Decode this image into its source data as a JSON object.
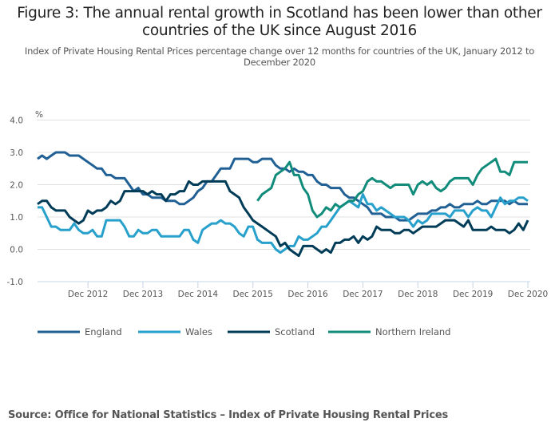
{
  "title": "Figure 3: The annual rental growth in Scotland has been lower than other countries of the UK since August 2016",
  "subtitle": "Index of Private Housing Rental Prices percentage change over 12 months for countries of the UK, January 2012 to December 2020",
  "source": "Source: Office for National Statistics – Index of Private Housing Rental Prices",
  "chart_data": {
    "type": "line",
    "title": "Figure 3: The annual rental growth in Scotland has been lower than other countries of the UK since August 2016",
    "subtitle": "Index of Private Housing Rental Prices percentage change over 12 months for countries of the UK, January 2012 to December 2020",
    "xlabel": "",
    "ylabel": "%",
    "ylim": [
      -1.0,
      4.0
    ],
    "yticks": [
      "4.0",
      "3.0",
      "2.0",
      "1.0",
      "0.0",
      "-1.0"
    ],
    "ytick_values": [
      4.0,
      3.0,
      2.0,
      1.0,
      0.0,
      -1.0
    ],
    "x_start": "Jan 2012",
    "x_end": "Dec 2020",
    "x_months": 108,
    "xticks": [
      "Dec 2012",
      "Dec 2013",
      "Dec 2014",
      "Dec 2015",
      "Dec 2016",
      "Dec 2017",
      "Dec 2018",
      "Dec 2019",
      "Dec 2020"
    ],
    "xtick_month_index": [
      11,
      23,
      35,
      47,
      59,
      71,
      83,
      95,
      107
    ],
    "grid": true,
    "legend_position": "bottom",
    "series": [
      {
        "name": "England",
        "color": "#206095",
        "start_index": 0,
        "values": [
          2.8,
          2.9,
          2.8,
          2.9,
          3.0,
          3.0,
          3.0,
          2.9,
          2.9,
          2.9,
          2.8,
          2.7,
          2.6,
          2.5,
          2.5,
          2.3,
          2.3,
          2.2,
          2.2,
          2.2,
          2.0,
          1.8,
          1.9,
          1.7,
          1.7,
          1.6,
          1.6,
          1.6,
          1.5,
          1.5,
          1.5,
          1.4,
          1.4,
          1.5,
          1.6,
          1.8,
          1.9,
          2.1,
          2.1,
          2.3,
          2.5,
          2.5,
          2.5,
          2.8,
          2.8,
          2.8,
          2.8,
          2.7,
          2.7,
          2.8,
          2.8,
          2.8,
          2.6,
          2.5,
          2.5,
          2.4,
          2.5,
          2.4,
          2.4,
          2.3,
          2.3,
          2.1,
          2.0,
          2.0,
          1.9,
          1.9,
          1.9,
          1.7,
          1.6,
          1.6,
          1.5,
          1.4,
          1.3,
          1.1,
          1.1,
          1.1,
          1.0,
          1.0,
          1.0,
          0.9,
          0.9,
          0.9,
          1.0,
          1.1,
          1.1,
          1.1,
          1.2,
          1.2,
          1.3,
          1.3,
          1.4,
          1.3,
          1.3,
          1.4,
          1.4,
          1.4,
          1.5,
          1.4,
          1.4,
          1.5,
          1.5,
          1.5,
          1.5,
          1.4,
          1.5,
          1.4,
          1.4,
          1.4
        ]
      },
      {
        "name": "Wales",
        "color": "#27a0cc",
        "start_index": 0,
        "values": [
          1.3,
          1.3,
          1.0,
          0.7,
          0.7,
          0.6,
          0.6,
          0.6,
          0.8,
          0.6,
          0.5,
          0.5,
          0.6,
          0.4,
          0.4,
          0.9,
          0.9,
          0.9,
          0.9,
          0.7,
          0.4,
          0.4,
          0.6,
          0.5,
          0.5,
          0.6,
          0.6,
          0.4,
          0.4,
          0.4,
          0.4,
          0.4,
          0.6,
          0.6,
          0.3,
          0.2,
          0.6,
          0.7,
          0.8,
          0.8,
          0.9,
          0.8,
          0.8,
          0.7,
          0.5,
          0.4,
          0.7,
          0.7,
          0.3,
          0.2,
          0.2,
          0.2,
          0.0,
          -0.1,
          0.0,
          0.1,
          0.1,
          0.4,
          0.3,
          0.3,
          0.4,
          0.5,
          0.7,
          0.7,
          0.9,
          1.1,
          1.3,
          1.4,
          1.5,
          1.4,
          1.3,
          1.7,
          1.4,
          1.4,
          1.2,
          1.3,
          1.2,
          1.1,
          1.0,
          1.0,
          1.0,
          0.9,
          0.7,
          0.9,
          0.8,
          0.9,
          1.1,
          1.1,
          1.1,
          1.1,
          1.0,
          1.2,
          1.2,
          1.2,
          1.0,
          1.2,
          1.3,
          1.2,
          1.2,
          1.0,
          1.3,
          1.6,
          1.4,
          1.5,
          1.5,
          1.6,
          1.6,
          1.5
        ]
      },
      {
        "name": "Scotland",
        "color": "#003c57",
        "start_index": 0,
        "values": [
          1.4,
          1.5,
          1.5,
          1.3,
          1.2,
          1.2,
          1.2,
          1.0,
          0.9,
          0.8,
          0.9,
          1.2,
          1.1,
          1.2,
          1.2,
          1.3,
          1.5,
          1.4,
          1.5,
          1.8,
          1.8,
          1.8,
          1.8,
          1.8,
          1.7,
          1.8,
          1.7,
          1.7,
          1.5,
          1.7,
          1.7,
          1.8,
          1.8,
          2.1,
          2.0,
          2.0,
          2.1,
          2.1,
          2.1,
          2.1,
          2.1,
          2.1,
          1.8,
          1.7,
          1.6,
          1.3,
          1.1,
          0.9,
          0.8,
          0.7,
          0.6,
          0.5,
          0.4,
          0.1,
          0.2,
          0.0,
          -0.1,
          -0.2,
          0.1,
          0.1,
          0.1,
          0.0,
          -0.1,
          0.0,
          -0.1,
          0.2,
          0.2,
          0.3,
          0.3,
          0.4,
          0.2,
          0.4,
          0.3,
          0.4,
          0.7,
          0.6,
          0.6,
          0.6,
          0.5,
          0.5,
          0.6,
          0.6,
          0.5,
          0.6,
          0.7,
          0.7,
          0.7,
          0.7,
          0.8,
          0.9,
          0.9,
          0.9,
          0.8,
          0.7,
          0.9,
          0.6,
          0.6,
          0.6,
          0.6,
          0.7,
          0.6,
          0.6,
          0.6,
          0.5,
          0.6,
          0.8,
          0.6,
          0.9
        ]
      },
      {
        "name": "Northern Ireland",
        "color": "#118c7b",
        "start_index": 48,
        "values": [
          1.5,
          1.7,
          1.8,
          1.9,
          2.3,
          2.4,
          2.5,
          2.7,
          2.3,
          2.3,
          1.9,
          1.7,
          1.2,
          1.0,
          1.1,
          1.3,
          1.2,
          1.4,
          1.3,
          1.4,
          1.5,
          1.5,
          1.7,
          1.8,
          2.1,
          2.2,
          2.1,
          2.1,
          2.0,
          1.9,
          2.0,
          2.0,
          2.0,
          2.0,
          1.7,
          2.0,
          2.1,
          2.0,
          2.1,
          1.9,
          1.8,
          1.9,
          2.1,
          2.2,
          2.2,
          2.2,
          2.2,
          2.0,
          2.3,
          2.5,
          2.6,
          2.7,
          2.8,
          2.4,
          2.4,
          2.3,
          2.7,
          2.7,
          2.7,
          2.7
        ]
      }
    ]
  },
  "legend": [
    {
      "label": "England",
      "color": "#206095"
    },
    {
      "label": "Wales",
      "color": "#27a0cc"
    },
    {
      "label": "Scotland",
      "color": "#003c57"
    },
    {
      "label": "Northern Ireland",
      "color": "#118c7b"
    }
  ]
}
